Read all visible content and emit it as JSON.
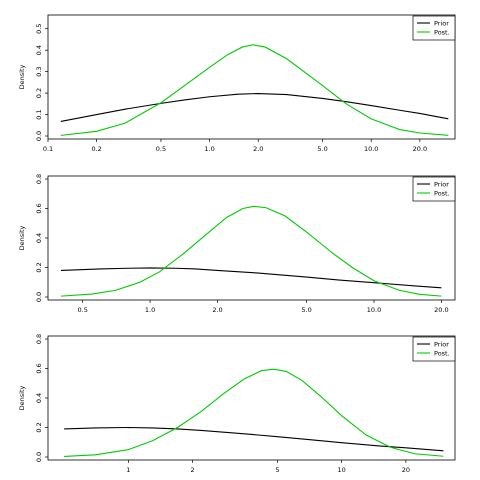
{
  "chart_data": [
    {
      "type": "line",
      "x_scale": "log",
      "xlim": [
        0.1,
        33
      ],
      "ylim": [
        0,
        0.55
      ],
      "x_ticks": [
        0.1,
        0.2,
        0.5,
        1.0,
        2.0,
        5.0,
        10.0,
        20.0
      ],
      "x_tick_labels": [
        "0.1",
        "0.2",
        "0.5",
        "1.0",
        "2.0",
        "5.0",
        "10.0",
        "20.0"
      ],
      "y_ticks": [
        0,
        0.1,
        0.2,
        0.3,
        0.4,
        0.5
      ],
      "y_tick_labels": [
        "0.0",
        "0.1",
        "0.2",
        "0.3",
        "0.4",
        "0.5"
      ],
      "ylabel": "Density",
      "legend": {
        "position": "top-right",
        "entries": [
          "Prior",
          "Post."
        ]
      },
      "series": [
        {
          "name": "Prior",
          "color": "#000000",
          "x": [
            0.12,
            0.2,
            0.3,
            0.5,
            0.7,
            1.0,
            1.5,
            2.0,
            3.0,
            5.0,
            7.0,
            10.0,
            15.0,
            20.0,
            30.0
          ],
          "y": [
            0.068,
            0.1,
            0.125,
            0.152,
            0.168,
            0.183,
            0.195,
            0.198,
            0.193,
            0.175,
            0.16,
            0.142,
            0.12,
            0.105,
            0.08
          ]
        },
        {
          "name": "Post.",
          "color": "#00cc00",
          "x": [
            0.12,
            0.2,
            0.3,
            0.5,
            0.7,
            1.0,
            1.3,
            1.6,
            1.85,
            2.2,
            3.0,
            4.0,
            5.0,
            7.0,
            10.0,
            15.0,
            20.0,
            30.0
          ],
          "y": [
            0.003,
            0.022,
            0.06,
            0.155,
            0.235,
            0.32,
            0.38,
            0.415,
            0.425,
            0.415,
            0.36,
            0.29,
            0.235,
            0.15,
            0.08,
            0.03,
            0.014,
            0.003
          ]
        }
      ]
    },
    {
      "type": "line",
      "x_scale": "log",
      "xlim": [
        0.35,
        23
      ],
      "ylim": [
        0,
        0.8
      ],
      "x_ticks": [
        0.5,
        1.0,
        2.0,
        5.0,
        10.0,
        20.0
      ],
      "x_tick_labels": [
        "0.5",
        "1.0",
        "2.0",
        "5.0",
        "10.0",
        "20.0"
      ],
      "y_ticks": [
        0,
        0.2,
        0.4,
        0.6,
        0.8
      ],
      "y_tick_labels": [
        "0.0",
        "0.2",
        "0.4",
        "0.6",
        "0.8"
      ],
      "ylabel": "Density",
      "legend": {
        "position": "top-right",
        "entries": [
          "Prior",
          "Post."
        ]
      },
      "series": [
        {
          "name": "Prior",
          "color": "#000000",
          "x": [
            0.4,
            0.6,
            0.8,
            1.0,
            1.3,
            1.6,
            2.0,
            3.0,
            5.0,
            7.0,
            10.0,
            15.0,
            20.0
          ],
          "y": [
            0.18,
            0.19,
            0.195,
            0.197,
            0.195,
            0.19,
            0.18,
            0.163,
            0.135,
            0.115,
            0.097,
            0.076,
            0.062
          ]
        },
        {
          "name": "Post.",
          "color": "#00cc00",
          "x": [
            0.4,
            0.55,
            0.7,
            0.9,
            1.1,
            1.4,
            1.8,
            2.2,
            2.6,
            2.9,
            3.3,
            4.0,
            5.0,
            6.5,
            8.0,
            10.0,
            13.0,
            16.0,
            20.0
          ],
          "y": [
            0.006,
            0.02,
            0.045,
            0.1,
            0.17,
            0.29,
            0.43,
            0.54,
            0.6,
            0.615,
            0.605,
            0.55,
            0.44,
            0.3,
            0.2,
            0.11,
            0.045,
            0.018,
            0.006
          ]
        }
      ]
    },
    {
      "type": "line",
      "x_scale": "log",
      "xlim": [
        0.42,
        34
      ],
      "ylim": [
        0,
        0.8
      ],
      "x_ticks": [
        1,
        2,
        5,
        10,
        20
      ],
      "x_tick_labels": [
        "1",
        "2",
        "5",
        "10",
        "20"
      ],
      "y_ticks": [
        0,
        0.2,
        0.4,
        0.6,
        0.8
      ],
      "y_tick_labels": [
        "0.0",
        "0.2",
        "0.4",
        "0.6",
        "0.8"
      ],
      "ylabel": "Density",
      "legend": {
        "position": "top-right",
        "entries": [
          "Prior",
          "Post."
        ]
      },
      "series": [
        {
          "name": "Prior",
          "color": "#000000",
          "x": [
            0.5,
            0.7,
            1.0,
            1.3,
            1.7,
            2.2,
            3.0,
            4.0,
            5.0,
            7.0,
            10.0,
            15.0,
            20.0,
            30.0
          ],
          "y": [
            0.19,
            0.197,
            0.2,
            0.197,
            0.19,
            0.18,
            0.165,
            0.15,
            0.138,
            0.118,
            0.097,
            0.075,
            0.062,
            0.042
          ]
        },
        {
          "name": "Post.",
          "color": "#00cc00",
          "x": [
            0.5,
            0.7,
            1.0,
            1.3,
            1.7,
            2.2,
            2.8,
            3.5,
            4.2,
            4.8,
            5.5,
            6.5,
            8.0,
            10.0,
            13.0,
            17.0,
            22.0,
            30.0
          ],
          "y": [
            0.004,
            0.015,
            0.05,
            0.11,
            0.2,
            0.31,
            0.43,
            0.53,
            0.585,
            0.595,
            0.58,
            0.52,
            0.41,
            0.28,
            0.15,
            0.065,
            0.022,
            0.005
          ]
        }
      ]
    }
  ]
}
